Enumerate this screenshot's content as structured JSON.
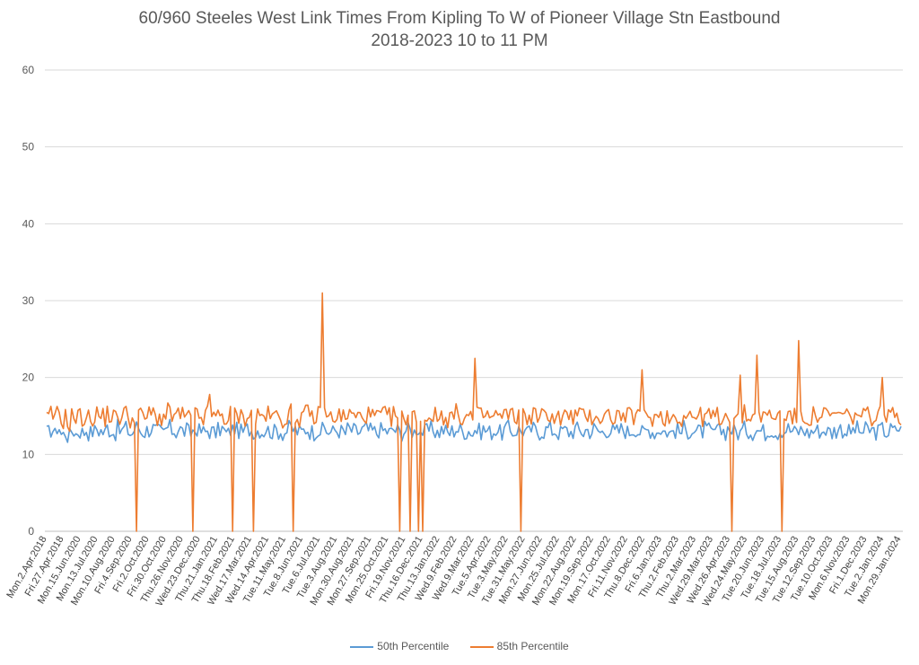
{
  "chart_data": {
    "type": "line",
    "title_line1": "60/960 Steeles West Link Times From Kipling To W of Pioneer Village Stn Eastbound",
    "title_line2": "2018-2023 10 to 11 PM",
    "xlabel": "",
    "ylabel": "",
    "ylim": [
      0,
      60
    ],
    "yticks": [
      0,
      10,
      20,
      30,
      40,
      50,
      60
    ],
    "grid": "horizontal",
    "legend_position": "bottom",
    "x_tick_labels": [
      "Mon.2.Apr.2018",
      "Fri.27.Apr.2018",
      "Mon.15.Jun.2020",
      "Mon.13.Jul.2020",
      "Mon.10.Aug.2020",
      "Fri.4.Sep.2020",
      "Fri.2.Oct.2020",
      "Fri.30.Oct.2020",
      "Thu.26.Nov.2020",
      "Wed.23.Dec.2020",
      "Thu.21.Jan.2021",
      "Thu.18.Feb.2021",
      "Wed.17.Mar.2021",
      "Wed.14.Apr.2021",
      "Tue.11.May.2021",
      "Tue.8.Jun.2021",
      "Tue.6.Jul.2021",
      "Tue.3.Aug.2021",
      "Mon.30.Aug.2021",
      "Mon.27.Sep.2021",
      "Mon.25.Oct.2021",
      "Fri.19.Nov.2021",
      "Thu.16.Dec.2021",
      "Thu.13.Jan.2022",
      "Wed.9.Feb.2022",
      "Wed.9.Mar.2022",
      "Tue.5.Apr.2022",
      "Tue.3.May.2022",
      "Tue.31.May.2022",
      "Mon.27.Jun.2022",
      "Mon.25.Jul.2022",
      "Mon.22.Aug.2022",
      "Mon.19.Sep.2022",
      "Mon.17.Oct.2022",
      "Fri.11.Nov.2022",
      "Thu.8.Dec.2022",
      "Fri.6.Jan.2023",
      "Thu.2.Feb.2023",
      "Thu.2.Mar.2023",
      "Wed.29.Mar.2023",
      "Wed.26.Apr.2023",
      "Wed.24.May.2023",
      "Tue.20.Jun.2023",
      "Tue.18.Jul.2023",
      "Tue.15.Aug.2023",
      "Tue.12.Sep.2023",
      "Tue.10.Oct.2023",
      "Mon.6.Nov.2023",
      "Fri.1.Dec.2023",
      "Tue.2.Jan.2024",
      "Mon.29.Jan.2024"
    ],
    "series": [
      {
        "name": "50th Percentile",
        "color": "#5B9BD5",
        "values": [
          12.8,
          13.2,
          12.5,
          13.5,
          12.6,
          12.9,
          12.4,
          13.1,
          12.7,
          13.0,
          12.9,
          13.3,
          12.8,
          13.0,
          13.4,
          13.1,
          12.9,
          13.6,
          13.2,
          12.8,
          13.5,
          13.0,
          13.4,
          13.1,
          12.7,
          13.3,
          13.6,
          13.0,
          12.9,
          13.2,
          13.4,
          13.1,
          13.0,
          12.8,
          13.2,
          13.5,
          13.1,
          12.9,
          13.3,
          13.0,
          13.2,
          12.8,
          13.1,
          13.4,
          13.0,
          12.9,
          13.2,
          13.0,
          12.8,
          13.1,
          13.3,
          13.0,
          12.7,
          13.2,
          13.5,
          13.1,
          12.9,
          13.0,
          13.3,
          13.1,
          12.8,
          13.2,
          13.0,
          13.4,
          13.1,
          12.9,
          13.2,
          13.0,
          12.8,
          13.1,
          13.4,
          13.2,
          13.0,
          12.9,
          13.1,
          13.3,
          13.0,
          12.8,
          13.2,
          13.1,
          13.4,
          13.0,
          12.9,
          13.2,
          13.1,
          13.0,
          12.7,
          13.3,
          13.1,
          13.0,
          12.9,
          13.2,
          13.4,
          13.1,
          13.0,
          12.8,
          13.2,
          13.1,
          13.0,
          12.9,
          13.3,
          13.1,
          12.8,
          13.0,
          13.2,
          13.1,
          12.9,
          13.4,
          13.0,
          12.8,
          13.1,
          13.3,
          13.0,
          12.9,
          13.2,
          13.0,
          12.8,
          13.1,
          13.4,
          13.2,
          13.0,
          12.9,
          13.1,
          12.7,
          13.2,
          13.0,
          13.3,
          13.1,
          12.9,
          13.0,
          13.2,
          12.8,
          13.1,
          13.4,
          13.0,
          12.9,
          13.2,
          13.1,
          13.0,
          12.8,
          13.3,
          13.1,
          12.9,
          13.0,
          13.2,
          13.4,
          13.1,
          13.0,
          12.8,
          13.2,
          13.1,
          12.9,
          13.0,
          13.3,
          13.1,
          12.8,
          13.2,
          13.0,
          13.4,
          13.1,
          12.9,
          13.0,
          13.2,
          13.1,
          12.8,
          13.0,
          13.3,
          13.1,
          12.9,
          13.2,
          13.4,
          13.0,
          12.8,
          13.1,
          13.2,
          13.0,
          12.9,
          13.3,
          13.1,
          13.0,
          12.8,
          13.2,
          13.1,
          12.9,
          13.4,
          13.0,
          13.2,
          13.1,
          12.9,
          13.0,
          13.3,
          13.1,
          12.8,
          13.2,
          13.0,
          13.1,
          12.9,
          13.4,
          13.2,
          13.0,
          12.8,
          13.1,
          13.3,
          13.0,
          12.9,
          13.2,
          13.1,
          13.0,
          12.8,
          13.3,
          13.1,
          12.9,
          13.2,
          13.0,
          13.4,
          13.1,
          12.9,
          13.0,
          13.2,
          13.1,
          12.8,
          13.0,
          13.3,
          13.1,
          12.9,
          13.2,
          13.0,
          12.8,
          13.1,
          13.4,
          13.2,
          13.0,
          12.9,
          13.1,
          13.3,
          13.0,
          12.8,
          13.2,
          13.1,
          13.0,
          12.9,
          13.3,
          13.1,
          12.8,
          13.2,
          13.0,
          13.4,
          13.1
        ]
      },
      {
        "name": "85th Percentile",
        "color": "#ED7D31",
        "values": [
          14.6,
          15.1,
          14.2,
          15.4,
          14.5,
          14.8,
          14.1,
          15.0,
          14.6,
          14.9,
          14.7,
          15.2,
          14.6,
          14.9,
          15.3,
          15.0,
          14.8,
          15.5,
          15.1,
          14.7,
          15.4,
          14.9,
          15.3,
          15.0,
          14.6,
          15.2,
          15.5,
          14.9,
          14.8,
          15.1,
          15.3,
          15.0,
          14.9,
          14.7,
          15.1,
          15.4,
          15.0,
          14.8,
          15.2,
          14.9,
          15.1,
          14.7,
          15.0,
          15.3,
          14.9,
          14.8,
          15.1,
          14.9,
          14.7,
          15.0,
          15.2,
          14.9,
          14.6,
          15.1,
          15.4,
          15.0,
          14.8,
          14.9,
          15.2,
          15.0,
          14.7,
          15.1,
          14.9,
          15.3,
          15.0,
          14.8,
          15.1,
          14.9,
          14.7,
          15.0,
          15.3,
          15.1,
          14.9,
          14.8,
          15.0,
          15.2,
          14.9,
          14.7,
          15.1,
          15.0,
          15.3,
          14.9,
          14.8,
          15.1,
          15.0,
          14.9,
          14.6,
          15.2,
          15.0,
          14.9,
          14.8,
          15.1,
          15.3,
          15.0,
          14.9,
          14.7,
          15.1,
          15.0,
          14.9,
          14.8,
          15.2,
          15.0,
          14.7,
          14.9,
          15.1,
          15.0,
          14.8,
          15.3,
          14.9,
          14.7,
          15.0,
          15.2,
          14.9,
          14.8,
          15.1,
          14.9,
          14.7,
          15.0,
          15.3,
          15.1,
          14.9,
          14.8,
          15.0,
          14.6,
          15.1,
          14.9,
          15.2,
          15.0,
          14.8,
          14.9,
          15.1,
          14.7,
          15.0,
          15.3,
          14.9,
          14.8,
          15.1,
          15.0,
          14.9,
          14.7,
          15.2,
          15.0,
          14.8,
          14.9,
          15.1,
          15.3,
          15.0,
          14.9,
          14.7,
          15.1,
          15.0,
          14.8,
          14.9,
          15.2,
          15.0,
          14.7,
          15.1,
          14.9,
          15.3,
          15.0,
          14.8,
          14.9,
          15.1,
          15.0,
          14.7,
          14.9,
          15.2,
          15.0,
          14.8,
          15.1,
          15.3,
          14.9,
          14.7,
          15.0,
          15.1,
          14.9,
          14.8,
          15.2,
          15.0,
          14.9,
          14.7,
          15.1,
          15.0,
          14.8,
          15.3,
          14.9,
          15.1,
          15.0,
          14.8,
          14.9,
          15.2,
          15.0,
          14.7,
          15.1,
          14.9,
          15.0,
          14.8,
          15.3,
          15.1,
          14.9,
          14.7,
          15.0,
          15.2,
          14.9,
          14.8,
          15.1,
          15.0,
          14.9,
          14.7,
          15.2,
          15.0,
          14.8,
          15.1,
          14.9,
          15.3,
          15.0,
          14.8,
          14.9,
          15.1,
          15.0,
          14.7,
          14.9,
          15.2,
          15.0,
          14.8,
          15.1,
          14.9,
          14.7,
          15.0,
          15.3,
          15.1,
          14.9,
          14.8,
          15.0,
          15.2,
          14.9,
          14.7,
          15.1,
          15.0,
          14.9,
          14.8,
          15.2,
          15.0,
          14.7,
          15.1,
          14.9,
          15.3,
          15.0
        ]
      }
    ],
    "p85_spikes": [
      {
        "index": 43,
        "value": 0
      },
      {
        "index": 70,
        "value": 0
      },
      {
        "index": 78,
        "value": 17.8
      },
      {
        "index": 89,
        "value": 0
      },
      {
        "index": 99,
        "value": 0
      },
      {
        "index": 118,
        "value": 0
      },
      {
        "index": 132,
        "value": 31.0
      },
      {
        "index": 169,
        "value": 0
      },
      {
        "index": 174,
        "value": 0
      },
      {
        "index": 178,
        "value": 0
      },
      {
        "index": 180,
        "value": 0
      },
      {
        "index": 205,
        "value": 22.5
      },
      {
        "index": 227,
        "value": 0
      },
      {
        "index": 285,
        "value": 21.0
      },
      {
        "index": 328,
        "value": 0
      },
      {
        "index": 332,
        "value": 20.3
      },
      {
        "index": 340,
        "value": 22.9
      },
      {
        "index": 352,
        "value": 0
      },
      {
        "index": 360,
        "value": 24.8
      },
      {
        "index": 400,
        "value": 20.0
      }
    ]
  },
  "legend": {
    "p50_label": "50th Percentile",
    "p85_label": "85th Percentile"
  }
}
